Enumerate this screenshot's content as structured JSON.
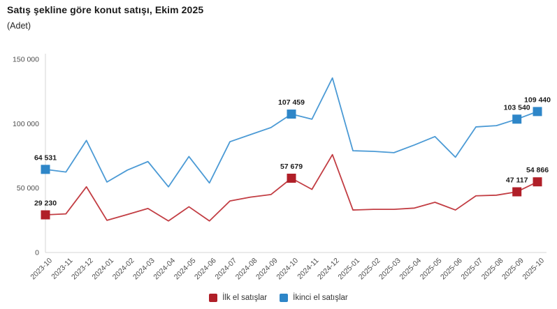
{
  "header": {
    "title": "Satış şekline göre konut satışı, Ekim 2025",
    "subtitle": "(Adet)"
  },
  "colors": {
    "first_hand_line": "#c23d43",
    "first_hand_marker": "#b01f28",
    "second_hand_line": "#4b9ad5",
    "second_hand_marker": "#2e86c8",
    "axis": "#d4d4d4",
    "tick_text": "#4d4d4d",
    "label_text": "#1a1a1a"
  },
  "chart_data": {
    "type": "line",
    "title": "Satış şekline göre konut satışı, Ekim 2025",
    "subtitle": "(Adet)",
    "xlabel": "",
    "ylabel": "Adet",
    "grid": false,
    "legend_position": "bottom",
    "ylim": [
      0,
      150000
    ],
    "yticks": [
      {
        "value": 0,
        "label": "0"
      },
      {
        "value": 50000,
        "label": "50 000"
      },
      {
        "value": 100000,
        "label": "100 000"
      },
      {
        "value": 150000,
        "label": "150 000"
      }
    ],
    "x": [
      "2023-10",
      "2023-11",
      "2023-12",
      "2024-01",
      "2024-02",
      "2024-03",
      "2024-04",
      "2024-05",
      "2024-06",
      "2024-07",
      "2024-08",
      "2024-09",
      "2024-10",
      "2024-11",
      "2024-12",
      "2025-01",
      "2025-02",
      "2025-03",
      "2025-04",
      "2025-05",
      "2025-06",
      "2025-07",
      "2025-08",
      "2025-09",
      "2025-10"
    ],
    "series": [
      {
        "name": "İlk el satışlar",
        "line_color": "#c23d43",
        "marker_color": "#b01f28",
        "values": [
          29230,
          30000,
          51000,
          25000,
          29500,
          34200,
          24500,
          35500,
          24500,
          40000,
          43000,
          45000,
          57679,
          49000,
          76000,
          33000,
          33500,
          33500,
          34500,
          39000,
          33000,
          44000,
          44500,
          47117,
          54866
        ],
        "labeled_points": [
          {
            "index": 0,
            "text": "29 230"
          },
          {
            "index": 12,
            "text": "57 679"
          },
          {
            "index": 23,
            "text": "47 117"
          },
          {
            "index": 24,
            "text": "54 866"
          }
        ]
      },
      {
        "name": "İkinci el satışlar",
        "line_color": "#4b9ad5",
        "marker_color": "#2e86c8",
        "values": [
          64531,
          62500,
          87000,
          54700,
          64000,
          70600,
          51000,
          74500,
          54000,
          86000,
          91500,
          97000,
          107459,
          103500,
          135500,
          79000,
          78500,
          77500,
          83500,
          90000,
          74000,
          97500,
          98500,
          103540,
          109440
        ],
        "labeled_points": [
          {
            "index": 0,
            "text": "64 531"
          },
          {
            "index": 12,
            "text": "107 459"
          },
          {
            "index": 23,
            "text": "103 540"
          },
          {
            "index": 24,
            "text": "109 440"
          }
        ]
      }
    ]
  },
  "legend": {
    "items": [
      {
        "label": "İlk el satışlar",
        "color": "#b01f28"
      },
      {
        "label": "İkinci el satışlar",
        "color": "#2e86c8"
      }
    ]
  }
}
